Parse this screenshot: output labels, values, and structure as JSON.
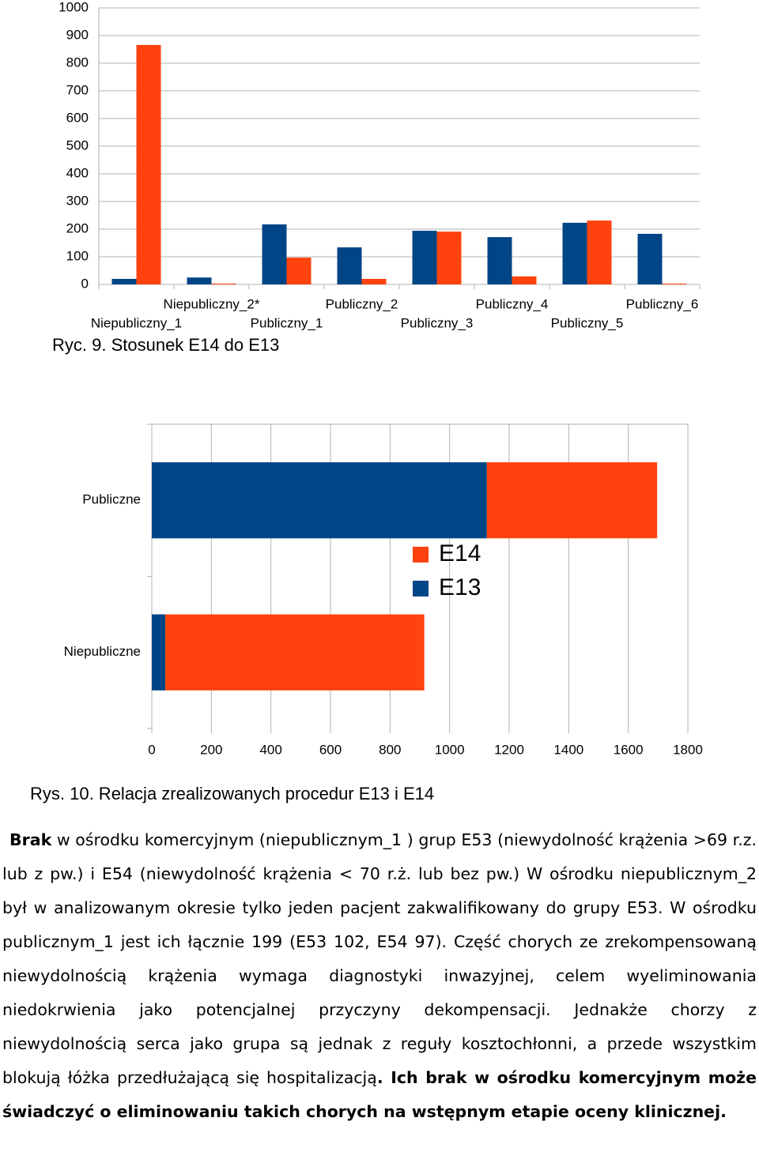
{
  "chart_data": [
    {
      "type": "bar",
      "categories": [
        "Niepubliczny_1",
        "Niepubliczny_2*",
        "Publiczny_1",
        "Publiczny_2",
        "Publiczny_3",
        "Publiczny_4",
        "Publiczny_5",
        "Publiczny_6"
      ],
      "series": [
        {
          "color": "#004586",
          "values": [
            20,
            25,
            217,
            134,
            194,
            171,
            223,
            183
          ]
        },
        {
          "color": "#ff420e",
          "values": [
            866,
            3,
            97,
            20,
            191,
            29,
            231,
            3
          ]
        }
      ],
      "ylim": [
        0,
        1000
      ],
      "yticks": [
        0,
        100,
        200,
        300,
        400,
        500,
        600,
        700,
        800,
        900,
        1000
      ],
      "grid": true
    },
    {
      "type": "barh",
      "stacked": true,
      "categories": [
        "Publiczne",
        "Niepubliczne"
      ],
      "series": [
        {
          "name": "E13",
          "color": "#004586",
          "values": [
            1125,
            45
          ]
        },
        {
          "name": "E14",
          "color": "#ff420e",
          "values": [
            572,
            870
          ]
        }
      ],
      "xlim": [
        0,
        1800
      ],
      "xticks": [
        0,
        200,
        400,
        600,
        800,
        1000,
        1200,
        1400,
        1600,
        1800
      ],
      "grid": true,
      "legend": "center"
    }
  ],
  "captions": [
    "Ryc. 9. Stosunek E14 do E13",
    "Rys. 10. Relacja zrealizowanych procedur E13 i E14"
  ],
  "paragraph": [
    {
      "text": "Brak",
      "bold": true
    },
    {
      "text": " w ośrodku komercyjnym (niepublicznym_1 ) grup E53 (niewydolność krążenia >69 r.z. lub z pw.) i E54 (niewydolność krążenia < 70 r.ż. lub bez pw.) W ośrodku niepublicznym_2 był w analizowanym okresie tylko jeden pacjent zakwalifikowany do grupy E53. W ośrodku publicznym_1 jest ich łącznie 199 (E53 102, E54 97). Część chorych ze zrekompensowaną niewydolnością krążenia wymaga diagnostyki inwazyjnej, celem wyeliminowania niedokrwienia jako potencjalnej przyczyny dekompensacji. Jednakże chorzy z niewydolnością serca jako grupa są jednak z reguły kosztochłonni, a przede wszystkim blokują łóżka przedłużającą się hospitalizacją",
      "bold": false
    },
    {
      "text": ". Ich brak w ośrodku komercyjnym może świadczyć o eliminowaniu takich chorych na wstępnym etapie oceny klinicznej.",
      "bold": true
    }
  ]
}
